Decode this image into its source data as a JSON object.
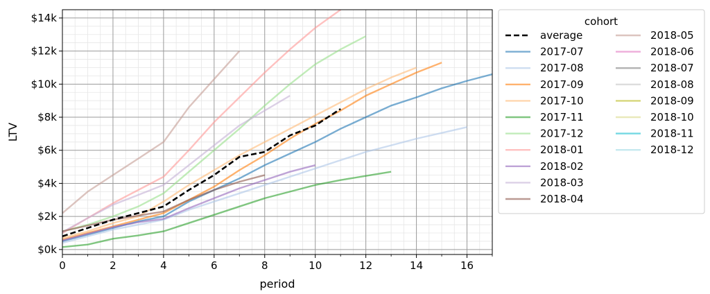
{
  "chart_data": {
    "type": "line",
    "xlabel": "period",
    "ylabel": "LTV",
    "xlim": [
      0,
      17
    ],
    "ylim": [
      -300,
      14500
    ],
    "x_ticks": [
      0,
      2,
      4,
      6,
      8,
      10,
      12,
      14,
      16
    ],
    "x_tick_labels": [
      "0",
      "2",
      "4",
      "6",
      "8",
      "10",
      "12",
      "14",
      "16"
    ],
    "y_ticks": [
      0,
      2000,
      4000,
      6000,
      8000,
      10000,
      12000,
      14000
    ],
    "y_tick_labels": [
      "$0k",
      "$2k",
      "$4k",
      "$6k",
      "$8k",
      "$10k",
      "$12k",
      "$14k"
    ],
    "grid": true,
    "legend_title": "cohort",
    "legend_placement": "outside-right",
    "series": [
      {
        "name": "average",
        "color": "#000000",
        "dashed": true,
        "opacity": 1,
        "x": [
          0,
          1,
          2,
          3,
          4,
          5,
          6,
          7,
          8,
          9,
          10,
          11
        ],
        "y": [
          800,
          1300,
          1800,
          2200,
          2600,
          3600,
          4500,
          5600,
          5900,
          6900,
          7500,
          8500
        ]
      },
      {
        "name": "2017-07",
        "color": "#1f77b4",
        "opacity": 0.6,
        "x": [
          0,
          1,
          2,
          3,
          4,
          5,
          6,
          7,
          8,
          9,
          10,
          11,
          12,
          13,
          14,
          15,
          16,
          17
        ],
        "y": [
          500,
          900,
          1300,
          1700,
          2000,
          2900,
          3600,
          4300,
          5100,
          5800,
          6500,
          7300,
          8000,
          8700,
          9200,
          9750,
          10200,
          10600
        ]
      },
      {
        "name": "2017-08",
        "color": "#aec7e8",
        "opacity": 0.6,
        "x": [
          0,
          1,
          2,
          3,
          4,
          5,
          6,
          7,
          8,
          9,
          10,
          11,
          12,
          13,
          14,
          15,
          16
        ],
        "y": [
          400,
          800,
          1200,
          1500,
          1800,
          2400,
          2900,
          3400,
          3900,
          4400,
          4900,
          5400,
          5900,
          6300,
          6700,
          7050,
          7400
        ]
      },
      {
        "name": "2017-09",
        "color": "#ff7f0e",
        "opacity": 0.6,
        "x": [
          0,
          1,
          2,
          3,
          4,
          5,
          6,
          7,
          8,
          9,
          10,
          11,
          12,
          13,
          14,
          15
        ],
        "y": [
          600,
          1000,
          1400,
          1800,
          2200,
          3000,
          3800,
          4800,
          5700,
          6700,
          7600,
          8400,
          9300,
          10000,
          10700,
          11300
        ]
      },
      {
        "name": "2017-10",
        "color": "#ffbb78",
        "opacity": 0.6,
        "x": [
          0,
          1,
          2,
          3,
          4,
          5,
          6,
          7,
          8,
          9,
          10,
          11,
          12,
          13,
          14
        ],
        "y": [
          700,
          1100,
          1600,
          2000,
          2900,
          3900,
          4800,
          5700,
          6500,
          7300,
          8100,
          8900,
          9700,
          10400,
          11000
        ]
      },
      {
        "name": "2017-11",
        "color": "#2ca02c",
        "opacity": 0.6,
        "x": [
          0,
          1,
          2,
          3,
          4,
          5,
          6,
          7,
          8,
          9,
          10,
          11,
          12,
          13
        ],
        "y": [
          150,
          300,
          650,
          850,
          1100,
          1600,
          2100,
          2600,
          3100,
          3500,
          3900,
          4200,
          4450,
          4700
        ]
      },
      {
        "name": "2017-12",
        "color": "#98df8a",
        "opacity": 0.6,
        "x": [
          0,
          1,
          2,
          3,
          4,
          5,
          6,
          7,
          8,
          9,
          10,
          11,
          12
        ],
        "y": [
          1100,
          1500,
          2000,
          2600,
          3400,
          4700,
          6000,
          7300,
          8700,
          10000,
          11200,
          12100,
          12900
        ]
      },
      {
        "name": "2018-01",
        "color": "#ff9896",
        "opacity": 0.6,
        "x": [
          0,
          1,
          2,
          3,
          4,
          5,
          6,
          7,
          8,
          9,
          10,
          11
        ],
        "y": [
          1000,
          1900,
          2800,
          3600,
          4400,
          6000,
          7700,
          9200,
          10700,
          12100,
          13400,
          14500
        ]
      },
      {
        "name": "2018-02",
        "color": "#9467bd",
        "opacity": 0.6,
        "x": [
          0,
          1,
          2,
          3,
          4,
          5,
          6,
          7,
          8,
          9,
          10
        ],
        "y": [
          550,
          950,
          1350,
          1650,
          1850,
          2500,
          3100,
          3700,
          4200,
          4700,
          5100
        ]
      },
      {
        "name": "2018-03",
        "color": "#c5b0d5",
        "opacity": 0.6,
        "x": [
          0,
          1,
          2,
          3,
          4,
          5,
          6,
          7,
          8,
          9
        ],
        "y": [
          1050,
          1900,
          2700,
          3300,
          3900,
          5100,
          6300,
          7500,
          8400,
          9300
        ]
      },
      {
        "name": "2018-04",
        "color": "#8c564b",
        "opacity": 0.6,
        "x": [
          0,
          1,
          2,
          3,
          4,
          5,
          6,
          7,
          8
        ],
        "y": [
          1100,
          1450,
          1800,
          2050,
          2300,
          3000,
          3600,
          4100,
          4500
        ]
      },
      {
        "name": "2018-05",
        "color": "#c49c94",
        "opacity": 0.6,
        "x": [
          0,
          1,
          2,
          3,
          4,
          5,
          6,
          7
        ],
        "y": [
          2200,
          3500,
          4500,
          5500,
          6500,
          8600,
          10300,
          12000
        ]
      },
      {
        "name": "2018-06",
        "color": "#e377c2",
        "opacity": 0.6,
        "x": [],
        "y": []
      },
      {
        "name": "2018-07",
        "color": "#7f7f7f",
        "opacity": 0.6,
        "x": [],
        "y": []
      },
      {
        "name": "2018-08",
        "color": "#c7c7c7",
        "opacity": 0.6,
        "x": [],
        "y": []
      },
      {
        "name": "2018-09",
        "color": "#bcbd22",
        "opacity": 0.6,
        "x": [],
        "y": []
      },
      {
        "name": "2018-10",
        "color": "#dbdb8d",
        "opacity": 0.6,
        "x": [],
        "y": []
      },
      {
        "name": "2018-11",
        "color": "#17becf",
        "opacity": 0.6,
        "x": [],
        "y": []
      },
      {
        "name": "2018-12",
        "color": "#9edae5",
        "opacity": 0.6,
        "x": [],
        "y": []
      }
    ]
  }
}
